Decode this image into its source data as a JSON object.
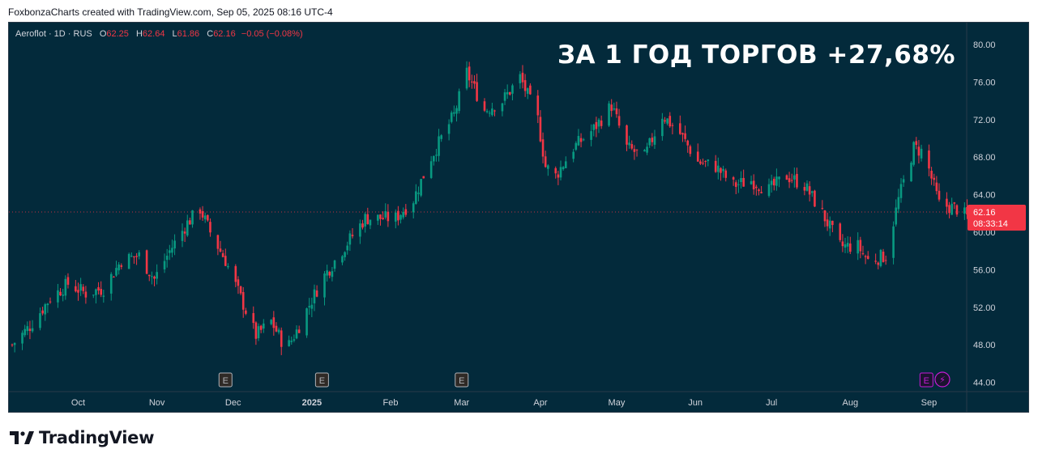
{
  "caption": "FoxbonzaCharts created with TradingView.com, Sep 05, 2025 08:16 UTC-4",
  "legend": {
    "symbol": "Aeroflot · 1D · RUS",
    "open_key": "O",
    "open": "62.25",
    "high_key": "H",
    "high": "62.64",
    "low_key": "L",
    "low": "61.86",
    "close_key": "C",
    "close": "62.16",
    "change": "−0.05 (−0.08%)"
  },
  "headline": "ЗА 1 ГОД ТОРГОВ +27,68%",
  "price_badge": {
    "price": "62.16",
    "countdown": "08:33:14"
  },
  "footer_brand": "TradingView",
  "colors": {
    "background": "#032a3b",
    "up": "#089981",
    "down": "#f23645",
    "axis_text": "#d1d4dc",
    "earnings": "#b0b3b8",
    "earnings_upcoming": "#c51bd4"
  },
  "chart_data": {
    "type": "candlestick",
    "ylim": [
      44,
      80
    ],
    "yticks": [
      "80.00",
      "76.00",
      "72.00",
      "68.00",
      "64.00",
      "60.00",
      "56.00",
      "52.00",
      "48.00",
      "44.00"
    ],
    "xticks": [
      "Oct",
      "Nov",
      "Dec",
      "2025",
      "Feb",
      "Mar",
      "Apr",
      "May",
      "Jun",
      "Jul",
      "Aug",
      "Sep"
    ],
    "last_price": 62.16,
    "earnings_markers": [
      {
        "label": "E",
        "date": "Dec",
        "upcoming": false
      },
      {
        "label": "E",
        "date": "2025",
        "upcoming": false
      },
      {
        "label": "E",
        "date": "Mar",
        "upcoming": false
      },
      {
        "label": "E",
        "date": "Sep",
        "upcoming": true
      }
    ],
    "dividend_marker": {
      "label": "⚡",
      "date": "Sep"
    },
    "close_path": [
      [
        "Sep 05 2024",
        48.0
      ],
      [
        "Sep 12 2024",
        50.0
      ],
      [
        "Sep 20 2024",
        53.0
      ],
      [
        "Sep 27 2024",
        54.5
      ],
      [
        "Oct 04 2024",
        53.5
      ],
      [
        "Oct 11 2024",
        54.0
      ],
      [
        "Oct 18 2024",
        57.0
      ],
      [
        "Oct 25 2024",
        57.5
      ],
      [
        "Oct 31 2024",
        55.0
      ],
      [
        "Nov 06 2024",
        58.0
      ],
      [
        "Nov 13 2024",
        61.0
      ],
      [
        "Nov 18 2024",
        62.5
      ],
      [
        "Nov 22 2024",
        60.0
      ],
      [
        "Nov 28 2024",
        57.0
      ],
      [
        "Dec 04 2024",
        53.0
      ],
      [
        "Dec 10 2024",
        49.0
      ],
      [
        "Dec 16 2024",
        50.5
      ],
      [
        "Dec 22 2024",
        47.5
      ],
      [
        "Dec 26 2024",
        49.5
      ],
      [
        "Jan 05 2025",
        55.0
      ],
      [
        "Jan 14 2025",
        58.5
      ],
      [
        "Jan 22 2025",
        61.5
      ],
      [
        "Feb 03 2025",
        61.5
      ],
      [
        "Feb 10 2025",
        63.5
      ],
      [
        "Feb 17 2025",
        68.0
      ],
      [
        "Feb 26 2025",
        72.5
      ],
      [
        "Mar 03 2025",
        77.0
      ],
      [
        "Mar 10 2025",
        73.0
      ],
      [
        "Mar 17 2025",
        74.0
      ],
      [
        "Mar 24 2025",
        76.5
      ],
      [
        "Mar 31 2025",
        72.0
      ],
      [
        "Apr 03 2025",
        67.0
      ],
      [
        "Apr 07 2025",
        66.0
      ],
      [
        "Apr 14 2025",
        69.0
      ],
      [
        "Apr 22 2025",
        71.0
      ],
      [
        "Apr 29 2025",
        73.5
      ],
      [
        "May 05 2025",
        69.0
      ],
      [
        "May 12 2025",
        68.0
      ],
      [
        "May 19 2025",
        72.5
      ],
      [
        "May 26 2025",
        70.5
      ],
      [
        "Jun 02 2025",
        67.5
      ],
      [
        "Jun 09 2025",
        67.0
      ],
      [
        "Jun 16 2025",
        65.0
      ],
      [
        "Jun 23 2025",
        65.5
      ],
      [
        "Jun 30 2025",
        64.5
      ],
      [
        "Jul 07 2025",
        66.0
      ],
      [
        "Jul 14 2025",
        65.0
      ],
      [
        "Jul 21 2025",
        62.0
      ],
      [
        "Jul 28 2025",
        58.5
      ],
      [
        "Aug 04 2025",
        58.5
      ],
      [
        "Aug 08 2025",
        57.0
      ],
      [
        "Aug 15 2025",
        57.5
      ],
      [
        "Aug 20 2025",
        63.5
      ],
      [
        "Aug 26 2025",
        69.0
      ],
      [
        "Aug 30 2025",
        68.5
      ],
      [
        "Sep 05 2025",
        63.0
      ],
      [
        "Sep 12 2025",
        62.5
      ],
      [
        "Sep 19 2025",
        61.0
      ],
      [
        "Sep 26 2025",
        62.16
      ]
    ]
  }
}
